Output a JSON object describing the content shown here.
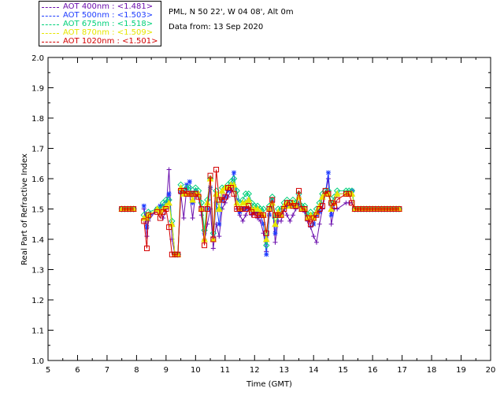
{
  "legend": [
    {
      "label": "AOT  400nm : <1.481>",
      "color": "#6a0dad"
    },
    {
      "label": "AOT  500nm : <1.503>",
      "color": "#1e3cff"
    },
    {
      "label": "AOT  675nm : <1.518>",
      "color": "#00d07a"
    },
    {
      "label": "AOT  870nm : <1.509>",
      "color": "#e6e600"
    },
    {
      "label": "AOT 1020nm : <1.501>",
      "color": "#d40000"
    }
  ],
  "info": {
    "site": "PML, N 50 22', W 04 08', Alt 0m",
    "date": "Data from: 13 Sep 2020"
  },
  "chart_data": {
    "type": "line",
    "xlabel": "Time (GMT)",
    "ylabel": "Real Part of Refractive Index",
    "xlim": [
      5,
      20
    ],
    "ylim": [
      1.0,
      2.0
    ],
    "xticks": [
      "5",
      "6",
      "7",
      "8",
      "9",
      "10",
      "11",
      "12",
      "13",
      "14",
      "15",
      "16",
      "17",
      "18",
      "19",
      "20"
    ],
    "yticks": [
      "1.0",
      "1.1",
      "1.2",
      "1.3",
      "1.4",
      "1.5",
      "1.6",
      "1.7",
      "1.8",
      "1.9",
      "2.0"
    ],
    "x": [
      7.5,
      7.6,
      7.7,
      7.8,
      7.9,
      8.25,
      8.35,
      8.4,
      8.7,
      8.8,
      8.9,
      9.0,
      9.1,
      9.2,
      9.3,
      9.4,
      9.5,
      9.6,
      9.7,
      9.8,
      9.9,
      10.0,
      10.1,
      10.2,
      10.3,
      10.4,
      10.5,
      10.6,
      10.7,
      10.8,
      10.9,
      11.0,
      11.1,
      11.2,
      11.3,
      11.4,
      11.5,
      11.6,
      11.7,
      11.8,
      11.9,
      12.0,
      12.1,
      12.2,
      12.3,
      12.4,
      12.5,
      12.6,
      12.7,
      12.8,
      12.9,
      13.0,
      13.1,
      13.2,
      13.3,
      13.4,
      13.5,
      13.6,
      13.7,
      13.8,
      13.9,
      14.0,
      14.1,
      14.2,
      14.3,
      14.4,
      14.5,
      14.6,
      14.7,
      14.8,
      15.1,
      15.2,
      15.3,
      15.4,
      15.5,
      15.6,
      15.7,
      15.8,
      15.9,
      16.0,
      16.1,
      16.2,
      16.3,
      16.4,
      16.5,
      16.6,
      16.7,
      16.8,
      16.9
    ],
    "series": [
      {
        "name": "AOT  400nm : <1.481>",
        "color": "#6a0dad",
        "marker": "plus",
        "values": [
          1.5,
          1.5,
          1.5,
          1.5,
          1.5,
          1.5,
          1.41,
          1.46,
          1.5,
          1.5,
          1.47,
          1.5,
          1.63,
          1.4,
          1.35,
          1.35,
          1.55,
          1.47,
          1.57,
          1.55,
          1.47,
          1.55,
          1.54,
          1.48,
          1.4,
          1.45,
          1.5,
          1.37,
          1.45,
          1.41,
          1.5,
          1.52,
          1.54,
          1.56,
          1.58,
          1.5,
          1.48,
          1.46,
          1.48,
          1.5,
          1.48,
          1.49,
          1.47,
          1.46,
          1.42,
          1.36,
          1.48,
          1.52,
          1.39,
          1.46,
          1.46,
          1.5,
          1.48,
          1.46,
          1.48,
          1.5,
          1.52,
          1.5,
          1.49,
          1.46,
          1.44,
          1.41,
          1.39,
          1.45,
          1.5,
          1.55,
          1.6,
          1.45,
          1.5,
          1.5,
          1.52,
          1.52,
          1.52,
          1.5,
          1.5,
          1.5,
          1.5,
          1.5,
          1.5,
          1.5,
          1.5,
          1.5,
          1.5,
          1.5,
          1.5,
          1.5,
          1.5,
          1.5,
          1.5
        ]
      },
      {
        "name": "AOT  500nm : <1.503>",
        "color": "#1e3cff",
        "marker": "star",
        "values": [
          1.5,
          1.5,
          1.5,
          1.5,
          1.5,
          1.51,
          1.44,
          1.47,
          1.5,
          1.51,
          1.51,
          1.52,
          1.55,
          1.45,
          1.35,
          1.35,
          1.56,
          1.55,
          1.58,
          1.59,
          1.52,
          1.56,
          1.55,
          1.5,
          1.42,
          1.5,
          1.57,
          1.4,
          1.52,
          1.45,
          1.53,
          1.54,
          1.56,
          1.58,
          1.62,
          1.53,
          1.49,
          1.5,
          1.5,
          1.53,
          1.5,
          1.5,
          1.49,
          1.48,
          1.45,
          1.35,
          1.48,
          1.53,
          1.42,
          1.48,
          1.48,
          1.51,
          1.51,
          1.51,
          1.51,
          1.51,
          1.54,
          1.5,
          1.5,
          1.47,
          1.48,
          1.45,
          1.48,
          1.49,
          1.54,
          1.55,
          1.62,
          1.48,
          1.52,
          1.55,
          1.55,
          1.55,
          1.56,
          1.5,
          1.5,
          1.5,
          1.5,
          1.5,
          1.5,
          1.5,
          1.5,
          1.5,
          1.5,
          1.5,
          1.5,
          1.5,
          1.5,
          1.5,
          1.5
        ]
      },
      {
        "name": "AOT  675nm : <1.518>",
        "color": "#00d07a",
        "marker": "diamond",
        "values": [
          1.5,
          1.5,
          1.5,
          1.5,
          1.5,
          1.48,
          1.47,
          1.49,
          1.5,
          1.5,
          1.52,
          1.53,
          1.53,
          1.46,
          1.35,
          1.35,
          1.58,
          1.56,
          1.57,
          1.57,
          1.55,
          1.57,
          1.56,
          1.52,
          1.43,
          1.53,
          1.6,
          1.42,
          1.56,
          1.5,
          1.57,
          1.57,
          1.58,
          1.59,
          1.6,
          1.56,
          1.52,
          1.53,
          1.55,
          1.55,
          1.52,
          1.51,
          1.51,
          1.5,
          1.5,
          1.38,
          1.51,
          1.54,
          1.47,
          1.5,
          1.5,
          1.52,
          1.53,
          1.52,
          1.53,
          1.52,
          1.55,
          1.51,
          1.51,
          1.48,
          1.49,
          1.48,
          1.5,
          1.52,
          1.55,
          1.56,
          1.56,
          1.52,
          1.54,
          1.56,
          1.56,
          1.56,
          1.56,
          1.5,
          1.5,
          1.5,
          1.5,
          1.5,
          1.5,
          1.5,
          1.5,
          1.5,
          1.5,
          1.5,
          1.5,
          1.5,
          1.5,
          1.5,
          1.5
        ]
      },
      {
        "name": "AOT  870nm : <1.509>",
        "color": "#e6e600",
        "marker": "triangle",
        "values": [
          1.5,
          1.5,
          1.5,
          1.5,
          1.5,
          1.47,
          1.47,
          1.48,
          1.5,
          1.49,
          1.5,
          1.51,
          1.52,
          1.45,
          1.35,
          1.35,
          1.57,
          1.55,
          1.55,
          1.55,
          1.53,
          1.55,
          1.55,
          1.5,
          1.4,
          1.52,
          1.6,
          1.4,
          1.55,
          1.5,
          1.56,
          1.57,
          1.57,
          1.58,
          1.58,
          1.52,
          1.5,
          1.52,
          1.52,
          1.53,
          1.5,
          1.5,
          1.5,
          1.49,
          1.48,
          1.4,
          1.5,
          1.52,
          1.45,
          1.49,
          1.48,
          1.51,
          1.52,
          1.51,
          1.52,
          1.51,
          1.54,
          1.5,
          1.5,
          1.47,
          1.48,
          1.47,
          1.49,
          1.51,
          1.54,
          1.55,
          1.55,
          1.5,
          1.52,
          1.55,
          1.55,
          1.55,
          1.55,
          1.5,
          1.5,
          1.5,
          1.5,
          1.5,
          1.5,
          1.5,
          1.5,
          1.5,
          1.5,
          1.5,
          1.5,
          1.5,
          1.5,
          1.5,
          1.5
        ]
      },
      {
        "name": "AOT 1020nm : <1.501>",
        "color": "#d40000",
        "marker": "square",
        "values": [
          1.5,
          1.5,
          1.5,
          1.5,
          1.5,
          1.46,
          1.37,
          1.48,
          1.49,
          1.47,
          1.49,
          1.5,
          1.44,
          1.35,
          1.35,
          1.35,
          1.56,
          1.56,
          1.55,
          1.55,
          1.55,
          1.55,
          1.54,
          1.5,
          1.38,
          1.5,
          1.61,
          1.4,
          1.63,
          1.53,
          1.53,
          1.54,
          1.57,
          1.57,
          1.55,
          1.5,
          1.5,
          1.5,
          1.5,
          1.51,
          1.49,
          1.48,
          1.48,
          1.48,
          1.48,
          1.42,
          1.5,
          1.53,
          1.48,
          1.48,
          1.48,
          1.5,
          1.52,
          1.52,
          1.51,
          1.51,
          1.56,
          1.5,
          1.5,
          1.47,
          1.45,
          1.47,
          1.48,
          1.5,
          1.51,
          1.56,
          1.55,
          1.52,
          1.51,
          1.53,
          1.55,
          1.55,
          1.52,
          1.5,
          1.5,
          1.5,
          1.5,
          1.5,
          1.5,
          1.5,
          1.5,
          1.5,
          1.5,
          1.5,
          1.5,
          1.5,
          1.5,
          1.5,
          1.5
        ]
      }
    ],
    "grid": false,
    "legend_position": "top-left-outside"
  }
}
